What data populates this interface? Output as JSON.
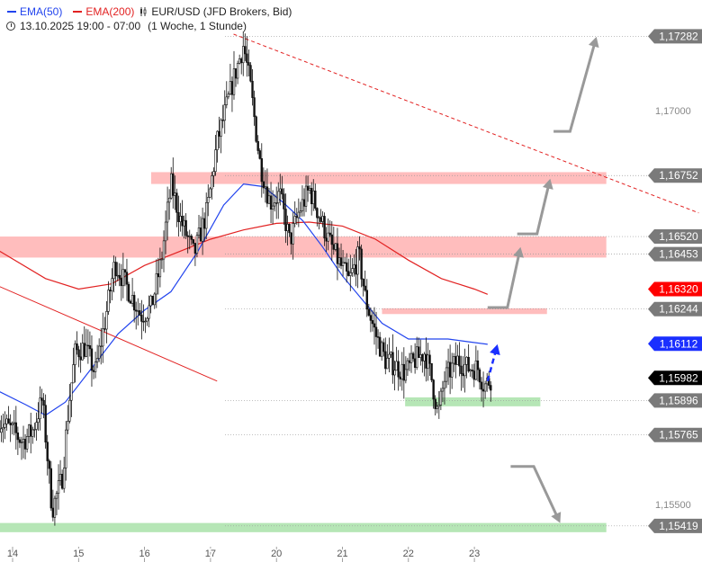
{
  "legend": {
    "ema50_label": "EMA(50)",
    "ema200_label": "EMA(200)",
    "symbol_label": "EUR/USD (JFD Brokers, Bid)",
    "period_label": "13.10.2025 19:00 - 07:00",
    "interval_label": "(1 Woche, 1 Stunde)"
  },
  "colors": {
    "candle": "#111111",
    "ema50": "#2244ee",
    "ema200": "#e22222",
    "resistance_zone": "#ff9a9a",
    "support_zone": "#8fd88f",
    "arrow": "#999999",
    "projection_arrow": "#1a2fff",
    "trendline_red": "#e22222",
    "badge_red": "#ff0000",
    "badge_blue": "#1a2fff",
    "badge_black": "#000000",
    "badge_gray": "#7a7a7a"
  },
  "chart_data": {
    "type": "candlestick",
    "symbol": "EUR/USD",
    "x_ticks": [
      "14",
      "15",
      "16",
      "17",
      "20",
      "21",
      "22",
      "23"
    ],
    "y_ticks": [
      1.155,
      1.17
    ],
    "y_tick_labels": [
      "1,15500",
      "1,17000"
    ],
    "ylim": [
      1.1535,
      1.1742
    ],
    "price_labels": [
      {
        "value": 1.17282,
        "text": "1,17282",
        "style": "gray"
      },
      {
        "value": 1.16752,
        "text": "1,16752",
        "style": "gray"
      },
      {
        "value": 1.1652,
        "text": "1,16520",
        "style": "gray"
      },
      {
        "value": 1.16453,
        "text": "1,16453",
        "style": "gray"
      },
      {
        "value": 1.1632,
        "text": "1,16320",
        "style": "red"
      },
      {
        "value": 1.16244,
        "text": "1,16244",
        "style": "gray"
      },
      {
        "value": 1.16112,
        "text": "1,16112",
        "style": "blue"
      },
      {
        "value": 1.15982,
        "text": "1,15982",
        "style": "black"
      },
      {
        "value": 1.15896,
        "text": "1,15896",
        "style": "gray"
      },
      {
        "value": 1.15765,
        "text": "1,15765",
        "style": "gray"
      },
      {
        "value": 1.15419,
        "text": "1,15419",
        "style": "gray"
      }
    ],
    "zones": [
      {
        "low": 1.1672,
        "high": 1.16765,
        "from": 2.1,
        "to": 9,
        "kind": "resistance"
      },
      {
        "low": 1.1644,
        "high": 1.1652,
        "from": -0.2,
        "to": 9,
        "kind": "resistance"
      },
      {
        "low": 1.16225,
        "high": 1.16247,
        "from": 5.6,
        "to": 8.1,
        "kind": "resistance"
      },
      {
        "low": 1.15874,
        "high": 1.15908,
        "from": 5.95,
        "to": 8.0,
        "kind": "support"
      },
      {
        "low": 1.15395,
        "high": 1.1543,
        "from": -0.2,
        "to": 9,
        "kind": "support"
      }
    ],
    "trend_lines": [
      {
        "x": [
          -0.2,
          3.1
        ],
        "y": [
          1.1633,
          1.1597
        ],
        "style": "solid"
      },
      {
        "x": [
          3.35,
          10.4
        ],
        "y": [
          1.1729,
          1.1661
        ],
        "style": "dashed"
      }
    ],
    "ema200": {
      "x": [
        -0.2,
        0.5,
        1.0,
        1.5,
        2.0,
        2.5,
        3.0,
        3.5,
        4.0,
        4.5,
        5.0,
        5.5,
        6.0,
        6.5,
        7.0,
        7.2
      ],
      "y": [
        1.16465,
        1.1636,
        1.1632,
        1.1634,
        1.1641,
        1.1646,
        1.1651,
        1.16545,
        1.1657,
        1.16575,
        1.1656,
        1.1651,
        1.1643,
        1.1636,
        1.1632,
        1.163
      ]
    },
    "ema50": {
      "x": [
        -0.2,
        0.2,
        0.5,
        0.8,
        1.2,
        1.6,
        2.0,
        2.4,
        2.8,
        3.2,
        3.5,
        3.8,
        4.1,
        4.4,
        4.7,
        5.0,
        5.3,
        5.6,
        6.0,
        6.3,
        6.6,
        6.9,
        7.2
      ],
      "y": [
        1.1593,
        1.1588,
        1.1584,
        1.1589,
        1.1602,
        1.1615,
        1.1624,
        1.1631,
        1.1646,
        1.1664,
        1.1672,
        1.1671,
        1.1665,
        1.1658,
        1.1648,
        1.1637,
        1.1628,
        1.1619,
        1.1613,
        1.1613,
        1.1613,
        1.1612,
        1.1611
      ]
    },
    "candles_path": [
      [
        -0.2,
        1.1582
      ],
      [
        0.0,
        1.1578
      ],
      [
        0.15,
        1.1574
      ],
      [
        0.3,
        1.1578
      ],
      [
        0.45,
        1.159
      ],
      [
        0.6,
        1.1548
      ],
      [
        0.75,
        1.156
      ],
      [
        0.85,
        1.1588
      ],
      [
        0.95,
        1.1608
      ],
      [
        1.1,
        1.161
      ],
      [
        1.25,
        1.16
      ],
      [
        1.4,
        1.162
      ],
      [
        1.55,
        1.1642
      ],
      [
        1.75,
        1.1632
      ],
      [
        1.95,
        1.1622
      ],
      [
        2.1,
        1.1625
      ],
      [
        2.25,
        1.1642
      ],
      [
        2.4,
        1.1672
      ],
      [
        2.55,
        1.1658
      ],
      [
        2.75,
        1.1645
      ],
      [
        2.95,
        1.1662
      ],
      [
        3.1,
        1.1688
      ],
      [
        3.25,
        1.1702
      ],
      [
        3.35,
        1.1712
      ],
      [
        3.5,
        1.1725
      ],
      [
        3.6,
        1.171
      ],
      [
        3.75,
        1.168
      ],
      [
        3.9,
        1.1665
      ],
      [
        4.05,
        1.1668
      ],
      [
        4.2,
        1.165
      ],
      [
        4.35,
        1.1662
      ],
      [
        4.5,
        1.167
      ],
      [
        4.65,
        1.166
      ],
      [
        4.8,
        1.165
      ],
      [
        4.95,
        1.1642
      ],
      [
        5.1,
        1.1635
      ],
      [
        5.25,
        1.1645
      ],
      [
        5.35,
        1.1628
      ],
      [
        5.5,
        1.1615
      ],
      [
        5.65,
        1.1605
      ],
      [
        5.8,
        1.1603
      ],
      [
        5.95,
        1.16
      ],
      [
        6.1,
        1.1605
      ],
      [
        6.25,
        1.1608
      ],
      [
        6.35,
        1.1598
      ],
      [
        6.45,
        1.1584
      ],
      [
        6.55,
        1.1598
      ],
      [
        6.75,
        1.1605
      ],
      [
        6.9,
        1.1602
      ],
      [
        7.05,
        1.1602
      ],
      [
        7.15,
        1.1595
      ],
      [
        7.25,
        1.1598
      ]
    ],
    "annotation_arrows": [
      {
        "points": [
          [
            7.55,
            1.15645
          ],
          [
            7.9,
            1.15645
          ],
          [
            8.3,
            1.1543
          ]
        ],
        "style": "gray"
      },
      {
        "points": [
          [
            7.2,
            1.1625
          ],
          [
            7.5,
            1.1625
          ],
          [
            7.7,
            1.1648
          ]
        ],
        "style": "gray"
      },
      {
        "points": [
          [
            7.65,
            1.1653
          ],
          [
            7.95,
            1.1653
          ],
          [
            8.15,
            1.1674
          ]
        ],
        "style": "gray"
      },
      {
        "points": [
          [
            8.2,
            1.1692
          ],
          [
            8.45,
            1.1692
          ],
          [
            8.85,
            1.1728
          ]
        ],
        "style": "gray"
      },
      {
        "points": [
          [
            7.2,
            1.1597
          ],
          [
            7.35,
            1.1611
          ]
        ],
        "style": "blue-dashed"
      }
    ]
  }
}
